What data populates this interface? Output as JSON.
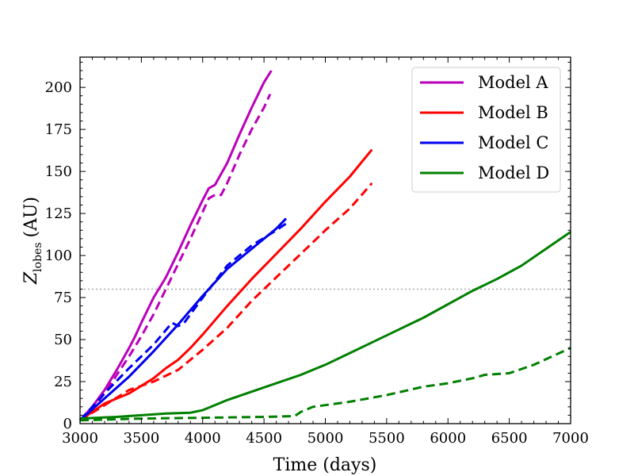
{
  "chart_data": {
    "type": "line",
    "title": "",
    "xlabel": "Time (days)",
    "ylabel_main": "Z",
    "ylabel_sub": "lobes",
    "ylabel_unit": "(AU)",
    "xlim": [
      3000,
      7000
    ],
    "ylim": [
      0,
      218
    ],
    "xticks": [
      3000,
      3500,
      4000,
      4500,
      5000,
      5500,
      6000,
      6500,
      7000
    ],
    "yticks": [
      0,
      25,
      50,
      75,
      100,
      125,
      150,
      175,
      200
    ],
    "reference_line": {
      "y": 80,
      "style": "dotted",
      "color": "#aaaaaa"
    },
    "legend_position": "top-right",
    "series": [
      {
        "name": "Model A",
        "color": "#bb00bb",
        "style": "solid",
        "x": [
          3000,
          3100,
          3200,
          3300,
          3400,
          3450,
          3500,
          3600,
          3700,
          3800,
          3900,
          4000,
          4050,
          4100,
          4200,
          4300,
          4400,
          4500,
          4560
        ],
        "y": [
          2,
          10,
          20,
          32,
          45,
          52,
          60,
          75,
          87,
          102,
          118,
          133,
          140,
          142,
          155,
          172,
          188,
          203,
          210
        ]
      },
      {
        "name": "Model A (dashed)",
        "color": "#bb00bb",
        "style": "dashed",
        "x": [
          3000,
          3100,
          3200,
          3300,
          3400,
          3500,
          3600,
          3700,
          3800,
          3900,
          4000,
          4050,
          4100,
          4150,
          4200,
          4300,
          4400,
          4500,
          4550
        ],
        "y": [
          2,
          9,
          18,
          29,
          40,
          52,
          65,
          80,
          95,
          110,
          126,
          134,
          136,
          136,
          143,
          160,
          175,
          188,
          196
        ]
      },
      {
        "name": "Model B",
        "color": "#ff0000",
        "style": "solid",
        "x": [
          3000,
          3200,
          3400,
          3600,
          3700,
          3800,
          3900,
          4000,
          4200,
          4400,
          4600,
          4800,
          5000,
          5200,
          5380
        ],
        "y": [
          2,
          12,
          18,
          27,
          33,
          38,
          45,
          53,
          70,
          86,
          101,
          116,
          132,
          147,
          163
        ]
      },
      {
        "name": "Model B (dashed)",
        "color": "#ff0000",
        "style": "dashed",
        "x": [
          3000,
          3200,
          3400,
          3600,
          3800,
          4000,
          4200,
          4400,
          4600,
          4800,
          5000,
          5200,
          5380
        ],
        "y": [
          2,
          11,
          20,
          25,
          32,
          44,
          57,
          73,
          87,
          101,
          115,
          128,
          143
        ]
      },
      {
        "name": "Model C",
        "color": "#0000ee",
        "style": "solid",
        "x": [
          3000,
          3200,
          3400,
          3600,
          3800,
          4000,
          4200,
          4400,
          4600,
          4680
        ],
        "y": [
          2,
          15,
          28,
          43,
          59,
          76,
          92,
          104,
          116,
          122
        ]
      },
      {
        "name": "Model C (dashed)",
        "color": "#0000ee",
        "style": "dashed",
        "x": [
          3000,
          3200,
          3400,
          3600,
          3750,
          3800,
          3850,
          4000,
          4200,
          4400,
          4600,
          4680
        ],
        "y": [
          2,
          18,
          33,
          47,
          60,
          58,
          60,
          75,
          94,
          106,
          115,
          119
        ]
      },
      {
        "name": "Model D",
        "color": "#008000",
        "style": "solid",
        "x": [
          3000,
          3300,
          3500,
          3700,
          3900,
          4000,
          4200,
          4400,
          4600,
          4800,
          5000,
          5200,
          5400,
          5600,
          5800,
          6000,
          6200,
          6400,
          6600,
          6800,
          7000
        ],
        "y": [
          3,
          4,
          5,
          6,
          6.5,
          8,
          14,
          19,
          24,
          29,
          35,
          42,
          49,
          56,
          63,
          71,
          79,
          86,
          94,
          104,
          114
        ]
      },
      {
        "name": "Model D (dashed)",
        "color": "#008000",
        "style": "dashed",
        "x": [
          3000,
          3500,
          4000,
          4500,
          4750,
          4800,
          4900,
          5200,
          5500,
          5800,
          6000,
          6200,
          6300,
          6500,
          6700,
          7000
        ],
        "y": [
          2,
          3,
          3.5,
          4,
          4.5,
          7,
          10,
          13,
          17,
          22,
          24,
          27,
          29,
          30,
          35,
          45
        ]
      }
    ],
    "legend": [
      {
        "label": "Model A",
        "color": "#bb00bb"
      },
      {
        "label": "Model B",
        "color": "#ff0000"
      },
      {
        "label": "Model C",
        "color": "#0000ee"
      },
      {
        "label": "Model D",
        "color": "#008000"
      }
    ]
  }
}
